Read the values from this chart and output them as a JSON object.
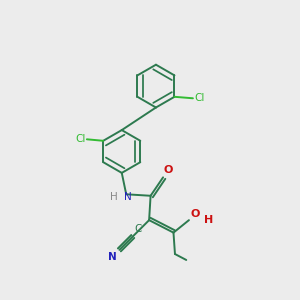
{
  "bg_color": "#ececec",
  "bond_color": "#2d7a4f",
  "n_color": "#2222bb",
  "o_color": "#cc1111",
  "cl_color": "#33bb33",
  "line_width": 1.4,
  "figsize": [
    3.0,
    3.0
  ],
  "dpi": 100,
  "xlim": [
    0,
    10
  ],
  "ylim": [
    0,
    10
  ]
}
